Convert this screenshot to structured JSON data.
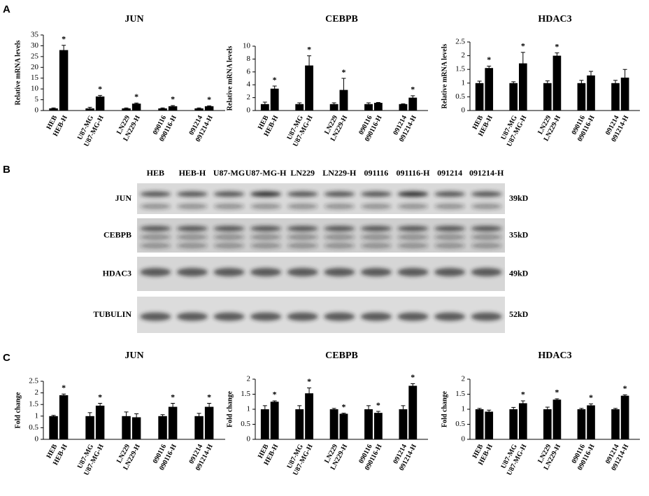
{
  "panel_labels": [
    "A",
    "B",
    "C"
  ],
  "chart_data": [
    {
      "type": "bar",
      "title": "JUN",
      "ylabel": "Relative mRNA levels",
      "color": "#000000",
      "categories": [
        "HEB",
        "HEB-H",
        "U87-MG",
        "U87-MG-H",
        "LN229",
        "LN229-H",
        "090116",
        "090116-H",
        "091214",
        "091214-H"
      ],
      "values": [
        1,
        28,
        1,
        6.5,
        1,
        3.2,
        1,
        2,
        1,
        2
      ],
      "errors": [
        0.2,
        2.2,
        0.5,
        0.5,
        0.2,
        0.3,
        0.2,
        0.3,
        0.2,
        0.2
      ],
      "significance": [
        null,
        "*",
        null,
        "*",
        null,
        "*",
        null,
        "*",
        null,
        "*"
      ],
      "ylim": [
        0,
        35
      ],
      "yticks": [
        0,
        5,
        10,
        15,
        20,
        25,
        30,
        35
      ]
    },
    {
      "type": "bar",
      "title": "CEBPB",
      "ylabel": "Relative mRNA levels",
      "color": "#000000",
      "categories": [
        "HEB",
        "HEB-H",
        "U87-MG",
        "U87-MG-H",
        "LN229",
        "LN229-H",
        "090116",
        "090116-H",
        "091214",
        "091214-H"
      ],
      "values": [
        1,
        3.4,
        1,
        7,
        1,
        3.2,
        1,
        1.2,
        1,
        2
      ],
      "errors": [
        0.3,
        0.4,
        0.2,
        1.5,
        0.2,
        1.8,
        0.2,
        0.05,
        0.05,
        0.3
      ],
      "significance": [
        null,
        "*",
        null,
        "*",
        null,
        "*",
        null,
        null,
        null,
        "*"
      ],
      "ylim": [
        0,
        10
      ],
      "yticks": [
        0,
        2,
        4,
        6,
        8,
        10
      ]
    },
    {
      "type": "bar",
      "title": "HDAC3",
      "ylabel": "Relative mRNA levels",
      "color": "#000000",
      "categories": [
        "HEB",
        "HEB-H",
        "U87-MG",
        "U87-MG-H",
        "LN229",
        "LN229-H",
        "090116",
        "090116-H",
        "091214",
        "091214-H"
      ],
      "values": [
        1,
        1.55,
        1,
        1.72,
        1,
        2,
        1,
        1.28,
        1,
        1.2
      ],
      "errors": [
        0.07,
        0.07,
        0.05,
        0.4,
        0.08,
        0.1,
        0.1,
        0.15,
        0.1,
        0.3
      ],
      "significance": [
        null,
        "*",
        null,
        "*",
        null,
        "*",
        null,
        null,
        null,
        null
      ],
      "ylim": [
        0,
        2.5
      ],
      "yticks": [
        0,
        0.5,
        1,
        1.5,
        2,
        2.5
      ]
    },
    {
      "type": "bar",
      "title": "JUN",
      "ylabel": "Fold change",
      "color": "#000000",
      "categories": [
        "HEB",
        "HEB-H",
        "U87-MG",
        "U87-MG-H",
        "LN229",
        "LN229-H",
        "090116",
        "090116-H",
        "091214",
        "091214-H"
      ],
      "values": [
        1,
        1.9,
        1,
        1.45,
        1,
        0.95,
        1,
        1.4,
        1,
        1.4
      ],
      "errors": [
        0.03,
        0.05,
        0.15,
        0.1,
        0.18,
        0.15,
        0.06,
        0.15,
        0.12,
        0.15
      ],
      "significance": [
        null,
        "*",
        null,
        "*",
        null,
        null,
        null,
        "*",
        null,
        "*"
      ],
      "ylim": [
        0,
        2.5
      ],
      "yticks": [
        0,
        0.5,
        1,
        1.5,
        2,
        2.5
      ]
    },
    {
      "type": "bar",
      "title": "CEBPB",
      "ylabel": "Fold change",
      "color": "#000000",
      "categories": [
        "HEB",
        "HEB-H",
        "U87-MG",
        "U87-MG-H",
        "LN229",
        "LN229-H",
        "090116",
        "090116-H",
        "091214",
        "091214-H"
      ],
      "values": [
        1,
        1.25,
        1,
        1.53,
        1,
        0.85,
        1,
        0.88,
        1,
        1.78
      ],
      "errors": [
        0.12,
        0.03,
        0.12,
        0.18,
        0.03,
        0.02,
        0.12,
        0.05,
        0.12,
        0.07
      ],
      "significance": [
        null,
        "*",
        null,
        "*",
        null,
        "*",
        null,
        "*",
        null,
        "*"
      ],
      "ylim": [
        0,
        2
      ],
      "yticks": [
        0,
        0.5,
        1,
        1.5,
        2
      ]
    },
    {
      "type": "bar",
      "title": "HDAC3",
      "ylabel": "Fold change",
      "color": "#000000",
      "categories": [
        "HEB",
        "HEB-H",
        "U87-MG",
        "U87-MG-H",
        "LN229",
        "LN229-H",
        "090116",
        "090116-H",
        "091214",
        "091214-H"
      ],
      "values": [
        1,
        0.92,
        1,
        1.2,
        1,
        1.32,
        1,
        1.13,
        1,
        1.45
      ],
      "errors": [
        0.03,
        0.05,
        0.06,
        0.08,
        0.07,
        0.03,
        0.03,
        0.05,
        0.03,
        0.03
      ],
      "significance": [
        null,
        null,
        null,
        "*",
        null,
        "*",
        null,
        "*",
        null,
        "*"
      ],
      "ylim": [
        0,
        2
      ],
      "yticks": [
        0,
        0.5,
        1,
        1.5,
        2
      ]
    }
  ],
  "blot": {
    "lanes": [
      "HEB",
      "HEB-H",
      "U87-MG",
      "U87-MG-H",
      "LN229",
      "LN229-H",
      "091116",
      "091116-H",
      "091214",
      "091214-H"
    ],
    "rows": [
      {
        "name": "JUN",
        "size": "39kD"
      },
      {
        "name": "CEBPB",
        "size": "35kD"
      },
      {
        "name": "HDAC3",
        "size": "49kD"
      },
      {
        "name": "TUBULIN",
        "size": "52kD"
      }
    ]
  }
}
